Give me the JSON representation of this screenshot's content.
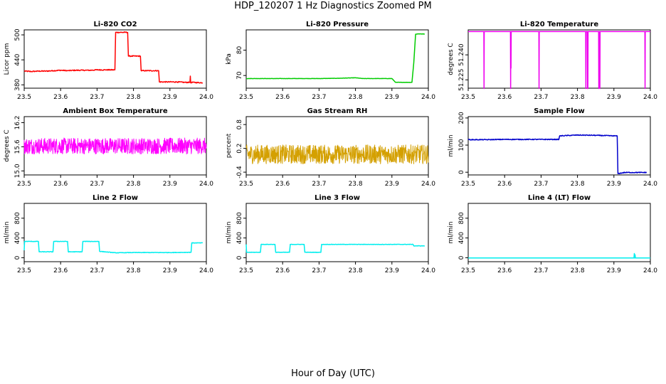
{
  "title": "HDP_120207  1 Hz Diagnostics Zoomed PM",
  "x_axis_label": "Hour of Day (UTC)",
  "chart_data": [
    {
      "type": "line",
      "title": "Li-820 CO2",
      "ylabel": "Licor ppm",
      "color": "#ff0000",
      "xlim": [
        23.5,
        24.0
      ],
      "ylim": [
        372,
        512
      ],
      "yticks": [
        380,
        440,
        500
      ],
      "xticks": [
        "23.5",
        "23.6",
        "23.7",
        "23.8",
        "23.9",
        "24.0"
      ],
      "noise": 1.2,
      "x": [
        23.5,
        23.52,
        23.54,
        23.56,
        23.58,
        23.6,
        23.62,
        23.64,
        23.66,
        23.68,
        23.7,
        23.72,
        23.749,
        23.751,
        23.784,
        23.786,
        23.819,
        23.821,
        23.869,
        23.871,
        23.9,
        23.92,
        23.94,
        23.955,
        23.956,
        23.957,
        23.96,
        23.99
      ],
      "y": [
        413,
        412,
        413,
        413,
        414,
        415,
        414,
        415,
        415,
        415,
        416,
        416,
        416,
        506,
        506,
        449,
        449,
        414,
        414,
        387,
        387,
        387,
        386,
        386,
        401,
        385,
        386,
        385
      ]
    },
    {
      "type": "line",
      "title": "Li-820 Pressure",
      "ylabel": "kPa",
      "color": "#00cc00",
      "xlim": [
        23.5,
        24.0
      ],
      "ylim": [
        65,
        88
      ],
      "yticks": [
        70,
        80
      ],
      "xticks": [
        "23.5",
        "23.6",
        "23.7",
        "23.8",
        "23.9",
        "24.0"
      ],
      "noise": 0.05,
      "x": [
        23.5,
        23.6,
        23.7,
        23.75,
        23.8,
        23.82,
        23.9,
        23.91,
        23.955,
        23.96,
        23.965,
        23.97,
        23.99
      ],
      "y": [
        68.8,
        68.8,
        68.8,
        68.9,
        69.1,
        68.8,
        68.8,
        67.3,
        67.3,
        75.0,
        86.3,
        86.4,
        86.4
      ]
    },
    {
      "type": "line",
      "title": "Li-820 Temperature",
      "ylabel": "degrees C",
      "color": "#ee00ee",
      "xlim": [
        23.5,
        24.0
      ],
      "ylim": [
        51.22,
        51.255
      ],
      "yticks": [
        51.225,
        51.24
      ],
      "ytick_labels": [
        "51.225",
        "51.240"
      ],
      "xticks": [
        "23.5",
        "23.6",
        "23.7",
        "23.8",
        "23.9",
        "24.0"
      ],
      "noise": 0,
      "x": [
        23.5,
        23.543,
        23.5435,
        23.544,
        23.616,
        23.6165,
        23.617,
        23.6175,
        23.618,
        23.694,
        23.6945,
        23.695,
        23.8225,
        23.823,
        23.8235,
        23.827,
        23.8275,
        23.828,
        23.8285,
        23.829,
        23.858,
        23.8585,
        23.859,
        23.861,
        23.8615,
        23.862,
        23.985,
        23.9855,
        23.986,
        24.0
      ],
      "y": [
        51.254,
        51.254,
        51.2198,
        51.254,
        51.254,
        51.2198,
        51.254,
        51.232,
        51.254,
        51.254,
        51.2198,
        51.254,
        51.254,
        51.2198,
        51.254,
        51.254,
        51.2198,
        51.254,
        51.2198,
        51.254,
        51.254,
        51.2198,
        51.254,
        51.254,
        51.2198,
        51.254,
        51.254,
        51.2198,
        51.254,
        51.254
      ]
    },
    {
      "type": "line",
      "title": "Ambient Box Temperature",
      "ylabel": "degrees C",
      "color": "#ff00ff",
      "xlim": [
        23.5,
        24.0
      ],
      "ylim": [
        14.9,
        16.35
      ],
      "yticks": [
        15.0,
        15.6,
        16.2
      ],
      "ytick_labels": [
        "15.0",
        "15.6",
        "16.2"
      ],
      "xticks": [
        "23.5",
        "23.6",
        "23.7",
        "23.8",
        "23.9",
        "24.0"
      ],
      "noise": 0.2,
      "dense": true,
      "x": [
        23.5,
        24.0
      ],
      "y": [
        15.62,
        15.62
      ]
    },
    {
      "type": "line",
      "title": "Gas Stream RH",
      "ylabel": "percent",
      "color": "#d4a000",
      "xlim": [
        23.5,
        24.0
      ],
      "ylim": [
        -0.47,
        1.0
      ],
      "yticks": [
        -0.4,
        0.2,
        0.8
      ],
      "ytick_labels": [
        "-0.4",
        "0.2",
        "0.8"
      ],
      "xticks": [
        "23.5",
        "23.6",
        "23.7",
        "23.8",
        "23.9",
        "24.0"
      ],
      "noise": 0.24,
      "dense": true,
      "x": [
        23.5,
        24.0
      ],
      "y": [
        0.05,
        0.05
      ]
    },
    {
      "type": "line",
      "title": "Sample Flow",
      "ylabel": "ml/min",
      "color": "#0000cc",
      "xlim": [
        23.5,
        24.0
      ],
      "ylim": [
        -10,
        205
      ],
      "yticks": [
        0,
        100,
        200
      ],
      "xticks": [
        "23.5",
        "23.6",
        "23.7",
        "23.8",
        "23.9",
        "24.0"
      ],
      "noise": 1.5,
      "x": [
        23.5,
        23.55,
        23.6,
        23.65,
        23.7,
        23.749,
        23.751,
        23.8,
        23.85,
        23.9,
        23.909,
        23.911,
        23.93,
        23.96,
        23.99
      ],
      "y": [
        120,
        120,
        121,
        121,
        121,
        121,
        134,
        137,
        136,
        134,
        134,
        -5,
        -1,
        -1,
        -1
      ]
    },
    {
      "type": "line",
      "title": "Line 2 Flow",
      "ylabel": "ml/min",
      "color": "#00eeee",
      "xlim": [
        23.5,
        24.0
      ],
      "ylim": [
        -80,
        1100
      ],
      "yticks": [
        0,
        400,
        800
      ],
      "xticks": [
        "23.5",
        "23.6",
        "23.7",
        "23.8",
        "23.9",
        "24.0"
      ],
      "noise": 5,
      "x": [
        23.5,
        23.501,
        23.539,
        23.541,
        23.579,
        23.581,
        23.619,
        23.621,
        23.659,
        23.661,
        23.705,
        23.707,
        23.75,
        23.8,
        23.85,
        23.9,
        23.958,
        23.96,
        23.99
      ],
      "y": [
        150,
        330,
        330,
        120,
        120,
        330,
        330,
        120,
        120,
        330,
        330,
        130,
        100,
        105,
        105,
        105,
        110,
        300,
        300
      ]
    },
    {
      "type": "line",
      "title": "Line 3 Flow",
      "ylabel": "ml/min",
      "color": "#00eeee",
      "xlim": [
        23.5,
        24.0
      ],
      "ylim": [
        -80,
        1100
      ],
      "yticks": [
        0,
        400,
        800
      ],
      "xticks": [
        "23.5",
        "23.6",
        "23.7",
        "23.8",
        "23.9",
        "24.0"
      ],
      "noise": 4,
      "x": [
        23.5,
        23.501,
        23.539,
        23.541,
        23.579,
        23.581,
        23.619,
        23.621,
        23.659,
        23.661,
        23.705,
        23.707,
        23.8,
        23.9,
        23.958,
        23.96,
        23.99
      ],
      "y": [
        270,
        110,
        110,
        270,
        270,
        110,
        110,
        270,
        270,
        110,
        110,
        270,
        270,
        270,
        270,
        240,
        240
      ]
    },
    {
      "type": "line",
      "title": "Line 4 (LT) Flow",
      "ylabel": "ml/min",
      "color": "#00eeee",
      "xlim": [
        23.5,
        24.0
      ],
      "ylim": [
        -80,
        1100
      ],
      "yticks": [
        0,
        400,
        800
      ],
      "xticks": [
        "23.5",
        "23.6",
        "23.7",
        "23.8",
        "23.9",
        "24.0"
      ],
      "noise": 0,
      "x": [
        23.5,
        23.955,
        23.956,
        23.957,
        23.958,
        23.959,
        24.0
      ],
      "y": [
        -5,
        -5,
        85,
        -5,
        60,
        -5,
        -5
      ]
    }
  ]
}
